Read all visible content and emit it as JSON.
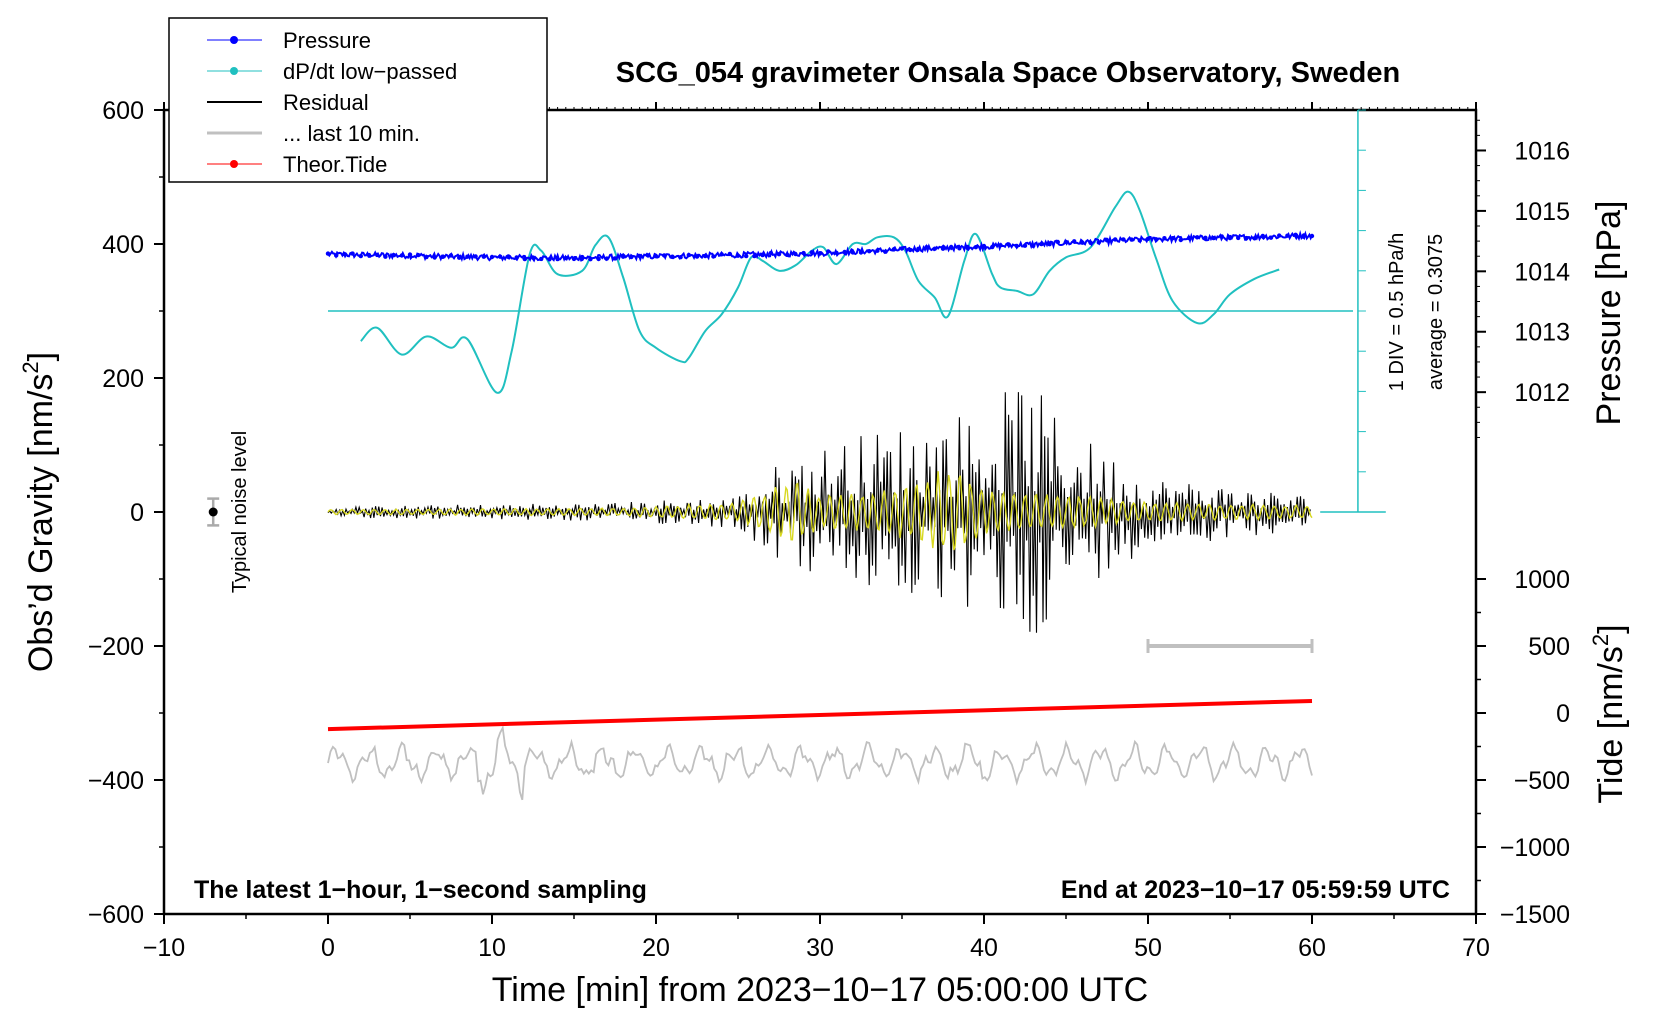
{
  "chart_data": {
    "type": "line",
    "title": "SCG_054 gravimeter Onsala Space Observatory, Sweden",
    "xlabel": "Time [min] from 2023−10−17 05:00:00 UTC",
    "ylabel_left": "Obs’d Gravity [nm/s",
    "ylabel_left_sup": "2",
    "ylabel_left_end": "]",
    "ylabel_right_top": "Pressure [hPa]",
    "ylabel_right_bottom": "Tide [nm/s",
    "ylabel_right_bottom_sup": "2",
    "ylabel_right_bottom_end": "]",
    "xlim": [
      -10,
      70
    ],
    "ylim": [
      -600,
      600
    ],
    "pressure_lim": [
      1010,
      1016.67
    ],
    "tide_lim": [
      -1500,
      1500
    ],
    "x_ticks": [
      -10,
      0,
      10,
      20,
      30,
      40,
      50,
      60,
      70
    ],
    "x_tick_labels": [
      "−10",
      "0",
      "10",
      "20",
      "30",
      "40",
      "50",
      "60",
      "70"
    ],
    "y_ticks": [
      -600,
      -400,
      -200,
      0,
      200,
      400,
      600
    ],
    "y_tick_labels": [
      "−600",
      "−400",
      "−200",
      "0",
      "200",
      "400",
      "600"
    ],
    "pressure_ticks": [
      1012,
      1013,
      1014,
      1015,
      1016
    ],
    "pressure_tick_labels": [
      "1012",
      "1013",
      "1014",
      "1015",
      "1016"
    ],
    "tide_ticks": [
      -1500,
      -1000,
      -500,
      0,
      500,
      1000
    ],
    "tide_tick_labels": [
      "−1500",
      "−1000",
      "−500",
      "0",
      "500",
      "1000"
    ],
    "series": [
      {
        "name": "Pressure",
        "color": "#0000ff",
        "axis": "pressure",
        "x": [
          0,
          5,
          10,
          15,
          20,
          25,
          30,
          35,
          40,
          45,
          50,
          55,
          60
        ],
        "values": [
          1014.28,
          1014.26,
          1014.23,
          1014.22,
          1014.25,
          1014.27,
          1014.3,
          1014.36,
          1014.41,
          1014.47,
          1014.53,
          1014.56,
          1014.59
        ]
      },
      {
        "name": "dP/dt low−passed",
        "color": "#20c0c0",
        "axis": "gravity",
        "x": [
          2.0,
          3.0,
          4.5,
          6.0,
          7.5,
          8.5,
          10.3,
          11.2,
          12.3,
          13.0,
          14.0,
          15.5,
          16.3,
          17.1,
          18.0,
          19.0,
          20.0,
          21.5,
          22.0,
          23.0,
          24.0,
          25.0,
          25.8,
          26.5,
          27.5,
          28.5,
          29.5,
          30.2,
          31.0,
          32.0,
          32.8,
          33.5,
          34.5,
          35.2,
          36.0,
          37.0,
          37.8,
          38.8,
          39.5,
          40.5,
          41.0,
          42.0,
          43.0,
          44.0,
          45.0,
          46.5,
          48.0,
          48.8,
          49.5,
          50.5,
          51.5,
          53.0,
          54.0,
          55.0,
          56.5,
          58.0
        ],
        "values": [
          255,
          275,
          235,
          262,
          245,
          258,
          178,
          240,
          385,
          390,
          355,
          360,
          398,
          410,
          350,
          270,
          245,
          225,
          230,
          270,
          295,
          335,
          380,
          375,
          360,
          368,
          390,
          395,
          370,
          400,
          400,
          410,
          410,
          390,
          345,
          320,
          292,
          375,
          415,
          355,
          335,
          330,
          325,
          360,
          380,
          395,
          455,
          478,
          450,
          378,
          315,
          282,
          295,
          325,
          348,
          362
        ]
      },
      {
        "name": "Residual",
        "color": "#000000",
        "axis": "gravity",
        "note": "noise band, peak amplitude ~200 near 42 min",
        "x": [
          0,
          18,
          25,
          28,
          32,
          36,
          40,
          42.5,
          45,
          50,
          60
        ],
        "values": [
          0,
          0,
          0,
          0,
          0,
          0,
          0,
          0,
          0,
          0,
          0
        ],
        "envelope": [
          8,
          15,
          25,
          85,
          115,
          140,
          160,
          205,
          130,
          55,
          25
        ]
      },
      {
        "name": "... last 10 min.",
        "color": "#c0c0c0",
        "axis": "gravity",
        "x": [
          50,
          60
        ],
        "values": [
          -200,
          -200
        ]
      },
      {
        "name": "Theor.Tide",
        "color": "#ff0000",
        "axis": "tide",
        "x": [
          0,
          60
        ],
        "values": [
          -120,
          90
        ]
      }
    ],
    "overlays": [
      {
        "name": "filtered residual",
        "color": "#d8d820",
        "x": [
          0,
          60
        ],
        "note": "yellow filtered band around 0, peak ~70 near 38 min"
      },
      {
        "name": "tide residual",
        "color": "#c0c0c0",
        "axis": "tide",
        "x": [
          0,
          60
        ],
        "note": "oscillation around -400 nm/s2 on tide axis"
      }
    ],
    "noise_bar": {
      "x": -7,
      "value": 0,
      "error": 20,
      "label": "Typical noise level"
    },
    "scale_annotation": {
      "div": "1 DIV = 0.5 hPa/h",
      "average": "average = 0.3075"
    },
    "footer_left": "The latest 1−hour, 1−second sampling",
    "footer_right": "End at 2023−10−17 05:59:59 UTC",
    "legend": [
      {
        "label": "Pressure",
        "color": "#0000ff",
        "marker": true,
        "line_width": 1
      },
      {
        "label": "dP/dt low−passed",
        "color": "#20c0c0",
        "marker": true,
        "line_width": 1
      },
      {
        "label": "Residual",
        "color": "#000000",
        "marker": false,
        "line_width": 2
      },
      {
        "label": "... last 10 min.",
        "color": "#c0c0c0",
        "marker": false,
        "line_width": 3
      },
      {
        "label": "Theor.Tide",
        "color": "#ff0000",
        "marker": true,
        "line_width": 1
      }
    ]
  }
}
